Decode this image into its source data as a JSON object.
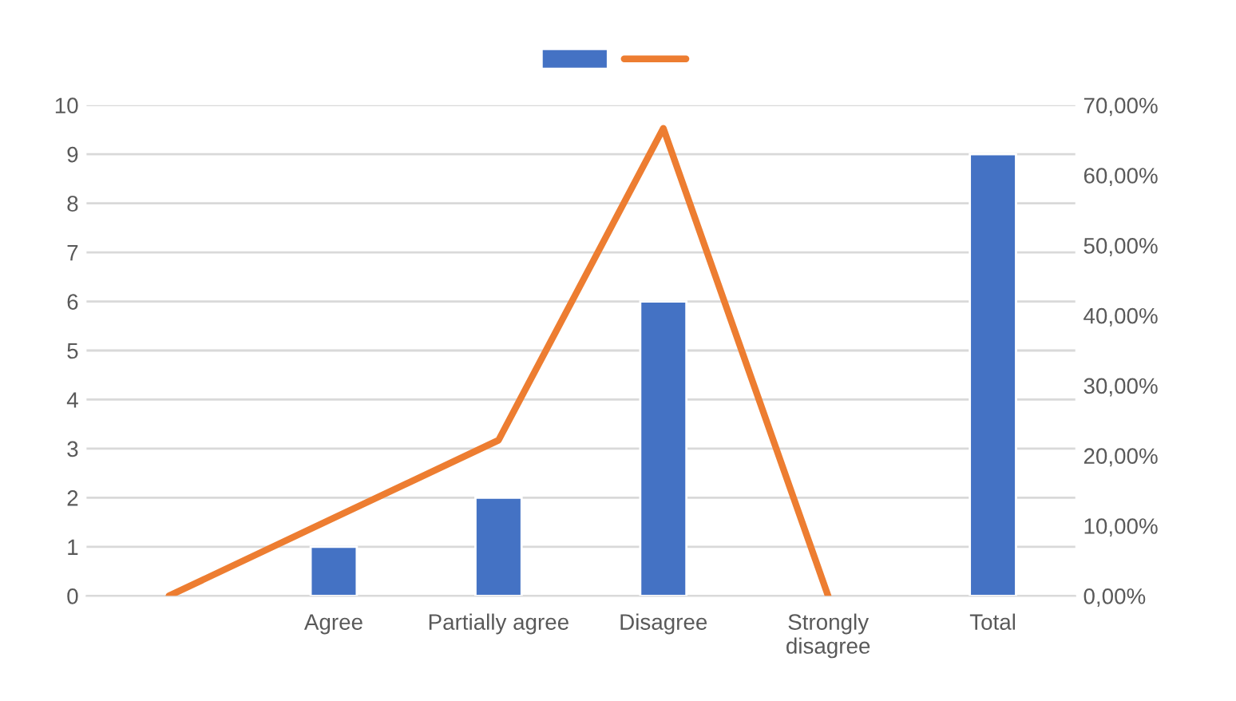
{
  "chart_data": {
    "type": "bar",
    "categories": [
      null,
      "Agree",
      "Partially agree",
      "Disagree",
      "Strongly disagree",
      "Total"
    ],
    "series": [
      {
        "color": "#4472c4",
        "values": [
          null,
          1,
          2,
          6,
          null,
          9
        ]
      },
      {
        "type": "line",
        "color": "#ed7d31",
        "axis": "y2",
        "values": [
          0,
          11.1,
          22.2,
          66.7,
          0,
          null
        ]
      }
    ],
    "ylim": [
      0,
      10
    ],
    "yticks": [
      0,
      1,
      2,
      3,
      4,
      5,
      6,
      7,
      8,
      9,
      10
    ],
    "y2lim": [
      0,
      70
    ],
    "y2ticks": [
      {
        "value": 0,
        "label": "0,00%"
      },
      {
        "value": 10,
        "label": "10,00%"
      },
      {
        "value": 20,
        "label": "20,00%"
      },
      {
        "value": 30,
        "label": "30,00%"
      },
      {
        "value": 40,
        "label": "40,00%"
      },
      {
        "value": 50,
        "label": "50,00%"
      },
      {
        "value": 60,
        "label": "60,00%"
      },
      {
        "value": 70,
        "label": "70,00%"
      }
    ],
    "grid": "y",
    "marker": "none",
    "line_style": "solid"
  }
}
